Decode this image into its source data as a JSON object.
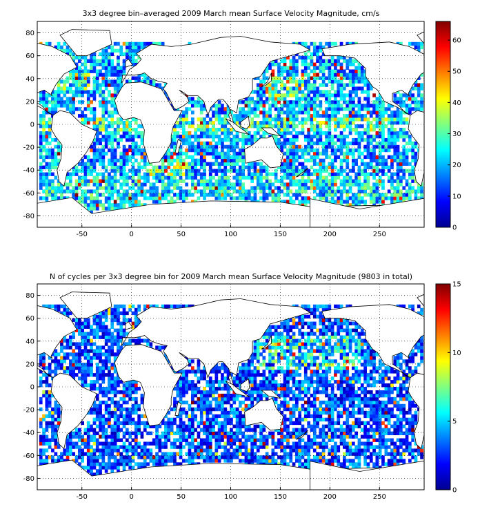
{
  "chart_data": [
    {
      "type": "heatmap",
      "title": "3x3 degree bin–averaged 2009 March mean Surface Velocity Magnitude, cm/s",
      "x_ticks": [
        -50,
        0,
        50,
        100,
        150,
        200,
        250
      ],
      "y_ticks": [
        80,
        60,
        40,
        20,
        0,
        -20,
        -40,
        -60,
        -80
      ],
      "xlim": [
        -95,
        295
      ],
      "ylim": [
        -90,
        90
      ],
      "bin_size_deg": 3,
      "grid": true,
      "colorbar": {
        "ticks": [
          0,
          10,
          20,
          30,
          40,
          50,
          60
        ],
        "range": [
          0,
          66
        ]
      },
      "colormap": "jet",
      "colors": {
        "min": "#00008f",
        "mid": "#80ff80",
        "max": "#800000"
      }
    },
    {
      "type": "heatmap",
      "title": "N of cycles per 3x3 degree bin for 2009 March mean Surface Velocity Magnitude (9803 in total)",
      "x_ticks": [
        -50,
        0,
        50,
        100,
        150,
        200,
        250
      ],
      "y_ticks": [
        80,
        60,
        40,
        20,
        0,
        -20,
        -40,
        -60,
        -80
      ],
      "xlim": [
        -95,
        295
      ],
      "ylim": [
        -90,
        90
      ],
      "bin_size_deg": 3,
      "grid": true,
      "colorbar": {
        "ticks": [
          0,
          5,
          10,
          15
        ],
        "range": [
          0,
          15
        ]
      },
      "colormap": "jet",
      "colors": {
        "min": "#00008f",
        "mid": "#80ff80",
        "max": "#800000"
      }
    }
  ]
}
